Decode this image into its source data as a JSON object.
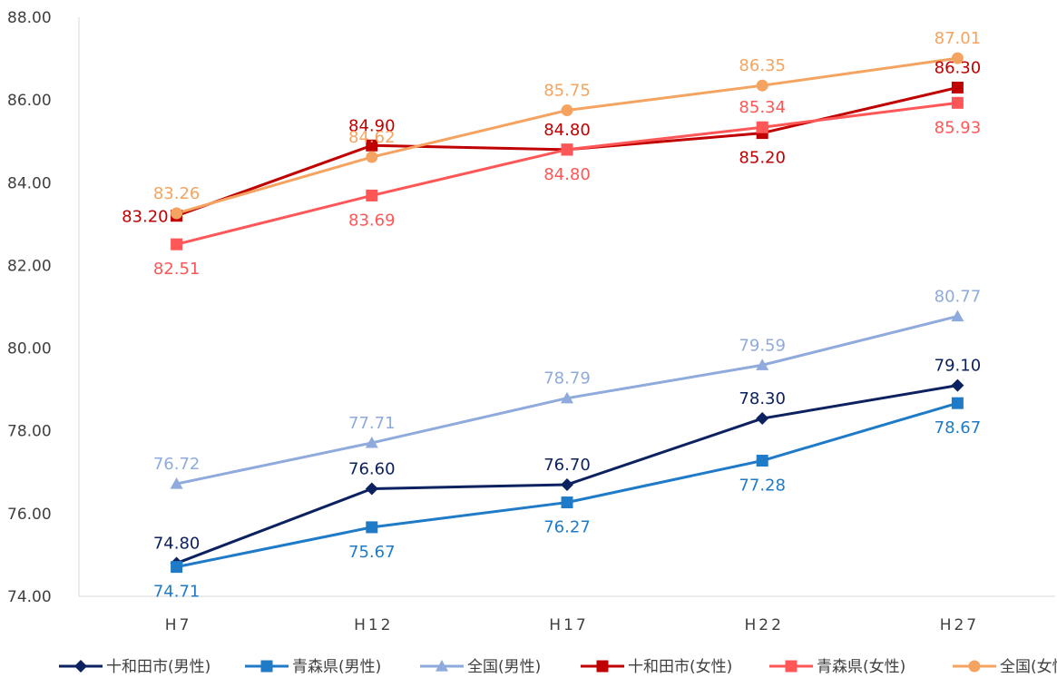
{
  "chart_data": {
    "type": "line",
    "categories": [
      "H7",
      "H12",
      "H17",
      "H22",
      "H27"
    ],
    "ylim": [
      74,
      88
    ],
    "yticks": [
      "74.00",
      "76.00",
      "78.00",
      "80.00",
      "82.00",
      "84.00",
      "86.00",
      "88.00"
    ],
    "grid": false,
    "legend_position": "bottom",
    "series": [
      {
        "name": "十和田市(男性)",
        "color": "#0B2160",
        "marker": "diamond",
        "values": [
          74.8,
          76.6,
          76.7,
          78.3,
          79.1
        ],
        "labels": [
          "74.80",
          "76.60",
          "76.70",
          "78.30",
          "79.10"
        ],
        "label_pos": "above"
      },
      {
        "name": "青森県(男性)",
        "color": "#1F7BC8",
        "marker": "square",
        "values": [
          74.71,
          75.67,
          76.27,
          77.28,
          78.67
        ],
        "labels": [
          "74.71",
          "75.67",
          "76.27",
          "77.28",
          "78.67"
        ],
        "label_pos": "below"
      },
      {
        "name": "全国(男性)",
        "color": "#8FAADC",
        "marker": "triangle",
        "values": [
          76.72,
          77.71,
          78.79,
          79.59,
          80.77
        ],
        "labels": [
          "76.72",
          "77.71",
          "78.79",
          "79.59",
          "80.77"
        ],
        "label_pos": "above"
      },
      {
        "name": "十和田市(女性)",
        "color": "#C00000",
        "marker": "square",
        "values": [
          83.2,
          84.9,
          84.8,
          85.2,
          86.3
        ],
        "labels": [
          "83.20",
          "84.90",
          "84.80",
          "85.20",
          "86.30"
        ],
        "label_pos": [
          "left",
          "above",
          "above",
          "below",
          "above"
        ]
      },
      {
        "name": "青森県(女性)",
        "color": "#FF5757",
        "marker": "square",
        "values": [
          82.51,
          83.69,
          84.8,
          85.34,
          85.93
        ],
        "labels": [
          "82.51",
          "83.69",
          "84.80",
          "85.34",
          "85.93"
        ],
        "label_pos": [
          "below",
          "below",
          "below",
          "above",
          "below"
        ]
      },
      {
        "name": "全国(女性)",
        "color": "#F4A460",
        "marker": "circle",
        "values": [
          83.26,
          84.62,
          85.75,
          86.35,
          87.01
        ],
        "labels": [
          "83.26",
          "84.62",
          "85.75",
          "86.35",
          "87.01"
        ],
        "label_pos": "above"
      }
    ]
  }
}
